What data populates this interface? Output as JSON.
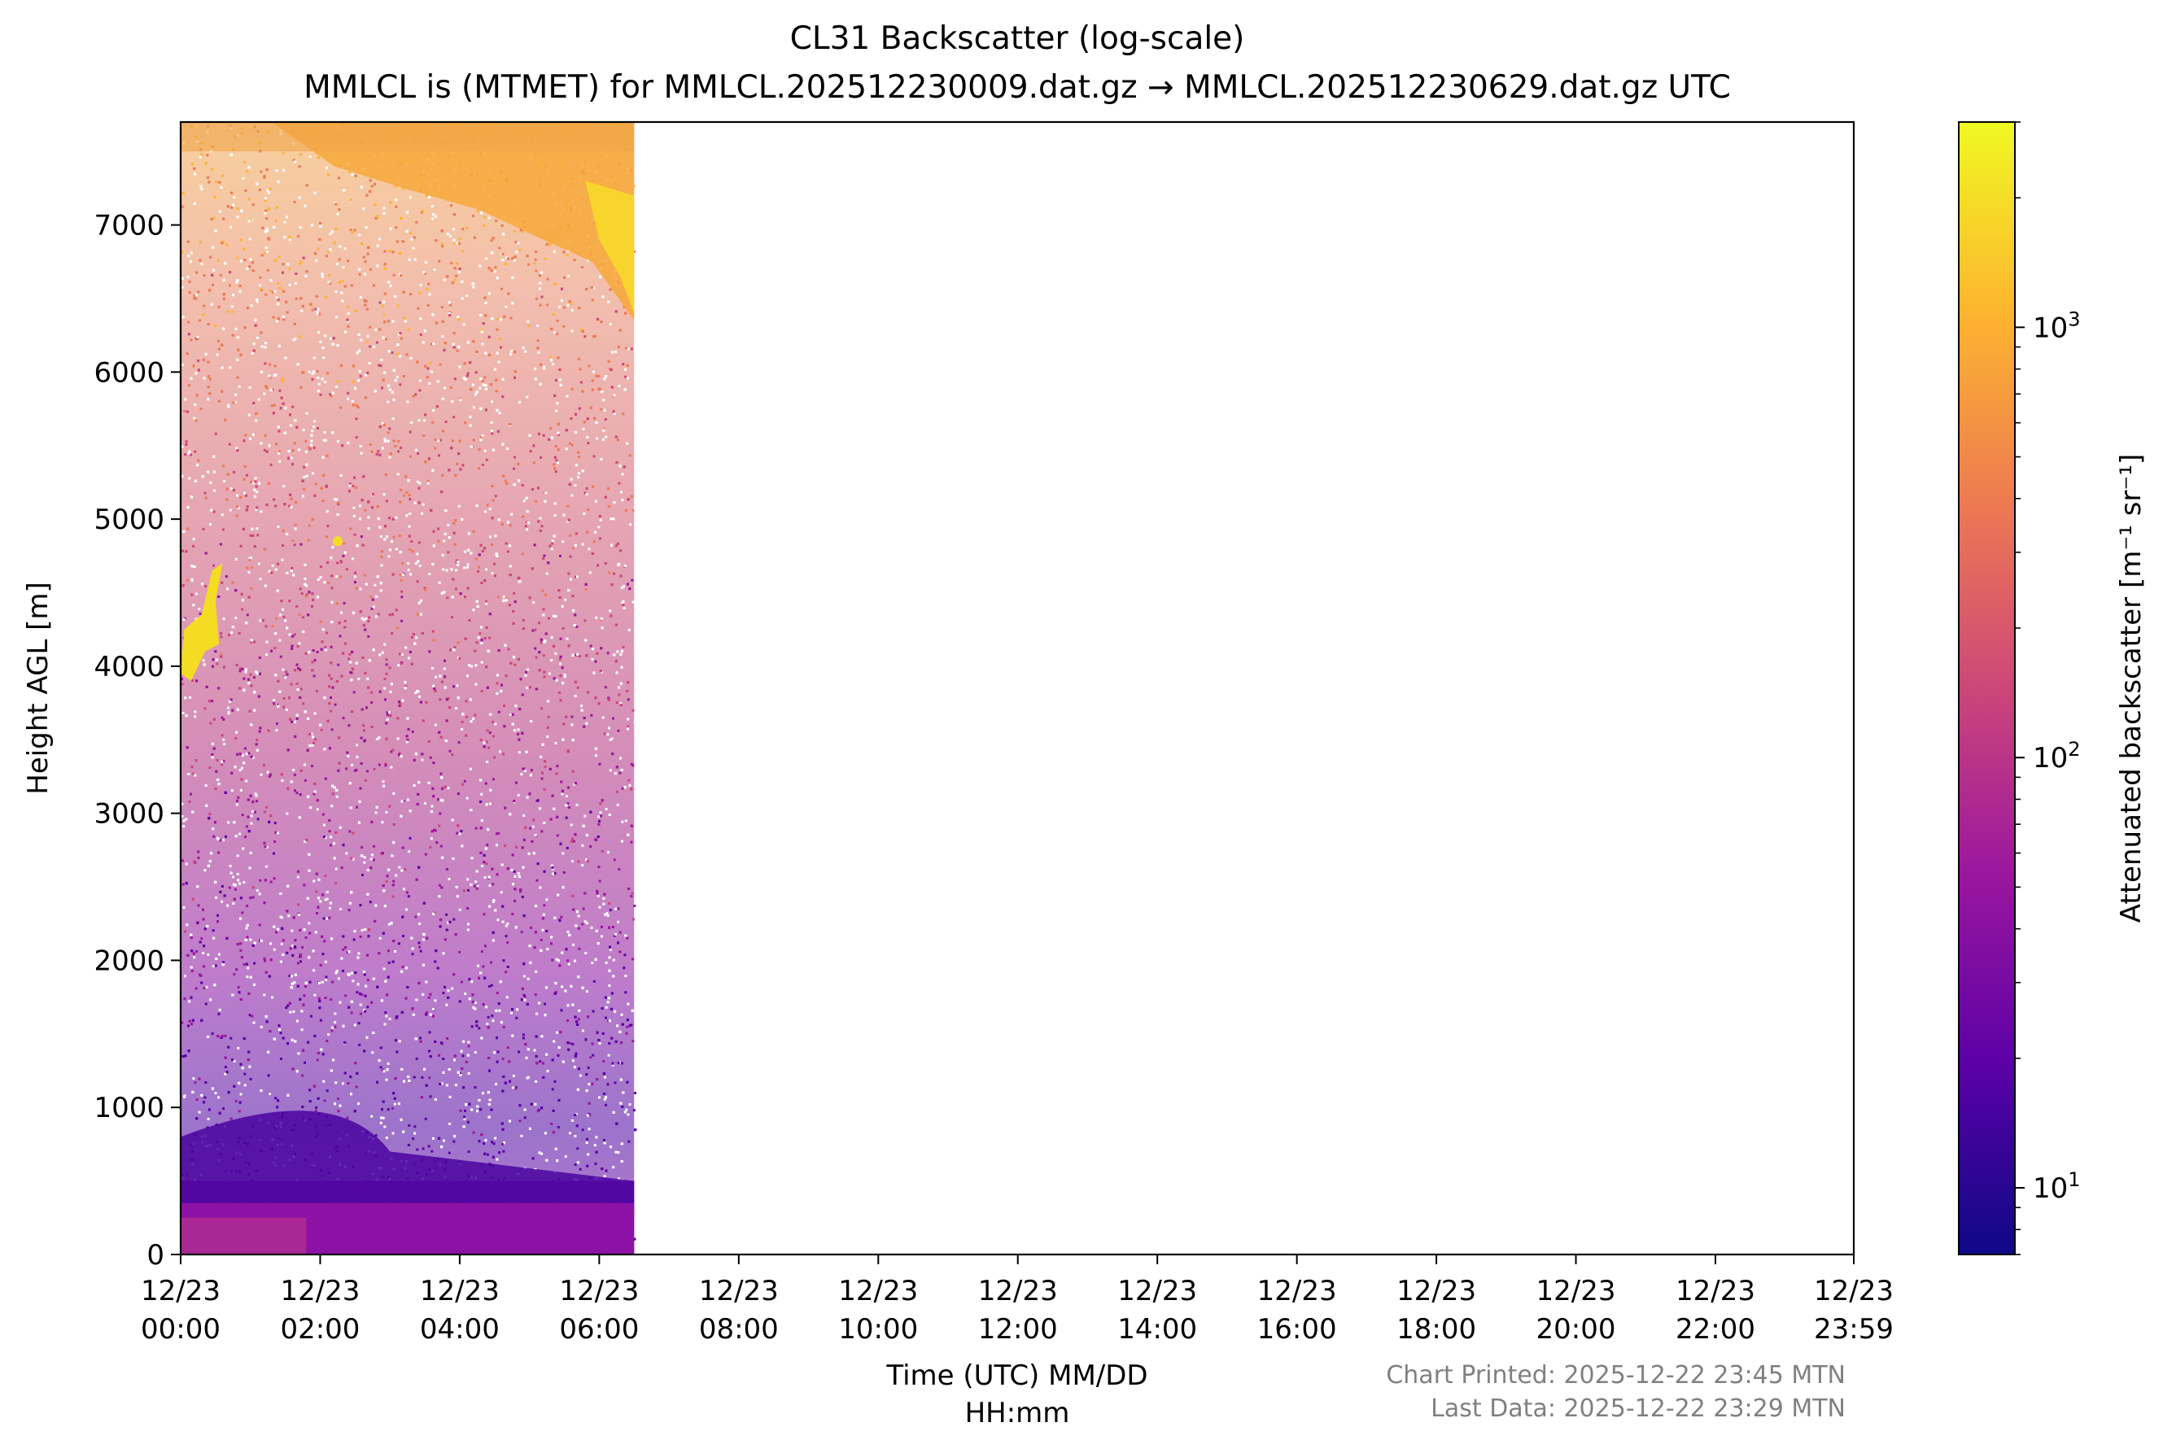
{
  "chart_data": {
    "type": "heatmap",
    "title": "CL31 Backscatter (log-scale)",
    "subtitle": "MMLCL is (MTMET) for MMLCL.202512230009.dat.gz → MMLCL.202512230629.dat.gz UTC",
    "xlabel_line1": "Time (UTC) MM/DD",
    "xlabel_line2": "HH:mm",
    "ylabel": "Height AGL [m]",
    "x_ticks": [
      {
        "date": "12/23",
        "time": "00:00",
        "hours": 0
      },
      {
        "date": "12/23",
        "time": "02:00",
        "hours": 2
      },
      {
        "date": "12/23",
        "time": "04:00",
        "hours": 4
      },
      {
        "date": "12/23",
        "time": "06:00",
        "hours": 6
      },
      {
        "date": "12/23",
        "time": "08:00",
        "hours": 8
      },
      {
        "date": "12/23",
        "time": "10:00",
        "hours": 10
      },
      {
        "date": "12/23",
        "time": "12:00",
        "hours": 12
      },
      {
        "date": "12/23",
        "time": "14:00",
        "hours": 14
      },
      {
        "date": "12/23",
        "time": "16:00",
        "hours": 16
      },
      {
        "date": "12/23",
        "time": "18:00",
        "hours": 18
      },
      {
        "date": "12/23",
        "time": "20:00",
        "hours": 20
      },
      {
        "date": "12/23",
        "time": "22:00",
        "hours": 22
      },
      {
        "date": "12/23",
        "time": "23:59",
        "hours": 23.983
      }
    ],
    "x_range_hours": [
      0,
      23.983
    ],
    "data_end_hours": 6.5,
    "y_ticks": [
      0,
      1000,
      2000,
      3000,
      4000,
      5000,
      6000,
      7000
    ],
    "ylim": [
      0,
      7700
    ],
    "colorbar": {
      "label": "Attenuated backscatter [m⁻¹ sr⁻¹]",
      "scale": "log",
      "range": [
        7,
        3000
      ],
      "ticks": [
        {
          "value": 10,
          "base": "10",
          "exp": "1"
        },
        {
          "value": 100,
          "base": "10",
          "exp": "2"
        },
        {
          "value": 1000,
          "base": "10",
          "exp": "3"
        }
      ],
      "colormap": "plasma",
      "colors": [
        "#0d0887",
        "#5c01a6",
        "#9c179e",
        "#cc4778",
        "#ed7953",
        "#fdb42f",
        "#f0f921"
      ]
    },
    "features": [
      {
        "name": "boundary-layer",
        "x_hours": [
          0,
          6.5
        ],
        "y_m": [
          0,
          800
        ]
      },
      {
        "name": "mid-level-cloud",
        "x_hours": [
          0,
          0.6
        ],
        "y_m": [
          3900,
          4700
        ]
      },
      {
        "name": "upper-cloud",
        "x_hours": [
          1.5,
          6.5
        ],
        "y_m": [
          6300,
          7700
        ]
      }
    ]
  },
  "footer": {
    "printed": "Chart Printed: 2025-12-22 23:45 MTN",
    "last_data": "Last Data: 2025-12-22 23:29 MTN"
  }
}
